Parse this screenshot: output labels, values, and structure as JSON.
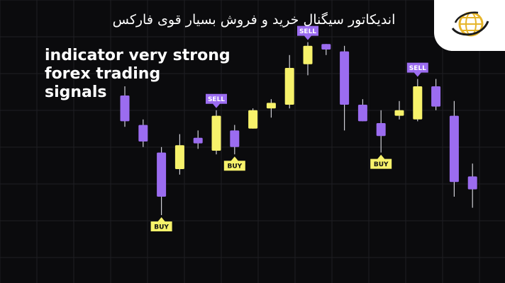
{
  "header": {
    "persian_title": "اندیکاتور سیگنال خرید و فروش بسیار قوی فارکس"
  },
  "logo": {
    "icon": "globe-logo-icon"
  },
  "heading": {
    "lines": [
      "indicator very strong",
      "forex trading",
      "signals"
    ]
  },
  "colors": {
    "background": "#0b0b0d",
    "bullish": "#f7f26b",
    "bearish": "#9b6cf0",
    "wick": "#cfcfd6",
    "sell_badge": "#9b6cf0",
    "buy_badge": "#f7f26b"
  },
  "chart_data": {
    "type": "candlestick",
    "title": "",
    "xlabel": "",
    "ylabel": "",
    "ylim": [
      0,
      100
    ],
    "grid": true,
    "candles": [
      {
        "i": 1,
        "open": 75,
        "close": 61,
        "high": 80,
        "low": 58
      },
      {
        "i": 2,
        "open": 59,
        "close": 50,
        "high": 62,
        "low": 47
      },
      {
        "i": 3,
        "open": 44,
        "close": 20,
        "high": 47,
        "low": 10
      },
      {
        "i": 4,
        "open": 35,
        "close": 48,
        "high": 54,
        "low": 32
      },
      {
        "i": 5,
        "open": 52,
        "close": 49,
        "high": 56,
        "low": 46
      },
      {
        "i": 6,
        "open": 45,
        "close": 64,
        "high": 67,
        "low": 43
      },
      {
        "i": 7,
        "open": 56,
        "close": 47,
        "high": 59,
        "low": 43
      },
      {
        "i": 8,
        "open": 57,
        "close": 67,
        "high": 68,
        "low": 57
      },
      {
        "i": 9,
        "open": 68,
        "close": 71,
        "high": 73,
        "low": 63
      },
      {
        "i": 10,
        "open": 70,
        "close": 90,
        "high": 97,
        "low": 68
      },
      {
        "i": 11,
        "open": 92,
        "close": 102,
        "high": 104,
        "low": 86
      },
      {
        "i": 12,
        "open": 103,
        "close": 100,
        "high": 103,
        "low": 97
      },
      {
        "i": 13,
        "open": 99,
        "close": 70,
        "high": 102,
        "low": 56
      },
      {
        "i": 14,
        "open": 70,
        "close": 61,
        "high": 73,
        "low": 61
      },
      {
        "i": 15,
        "open": 60,
        "close": 53,
        "high": 67,
        "low": 44
      },
      {
        "i": 16,
        "open": 64,
        "close": 67,
        "high": 72,
        "low": 62
      },
      {
        "i": 17,
        "open": 62,
        "close": 80,
        "high": 84,
        "low": 61
      },
      {
        "i": 18,
        "open": 80,
        "close": 69,
        "high": 84,
        "low": 67
      },
      {
        "i": 19,
        "open": 64,
        "close": 28,
        "high": 72,
        "low": 20
      },
      {
        "i": 20,
        "open": 31,
        "close": 24,
        "high": 38,
        "low": 14
      }
    ],
    "signals": [
      {
        "label": "SELL",
        "candle": 6,
        "side": "top"
      },
      {
        "label": "SELL",
        "candle": 11,
        "side": "top"
      },
      {
        "label": "SELL",
        "candle": 17,
        "side": "top"
      },
      {
        "label": "BUY",
        "candle": 3,
        "side": "bottom"
      },
      {
        "label": "BUY",
        "candle": 7,
        "side": "bottom"
      },
      {
        "label": "BUY",
        "candle": 15,
        "side": "bottom"
      }
    ]
  }
}
